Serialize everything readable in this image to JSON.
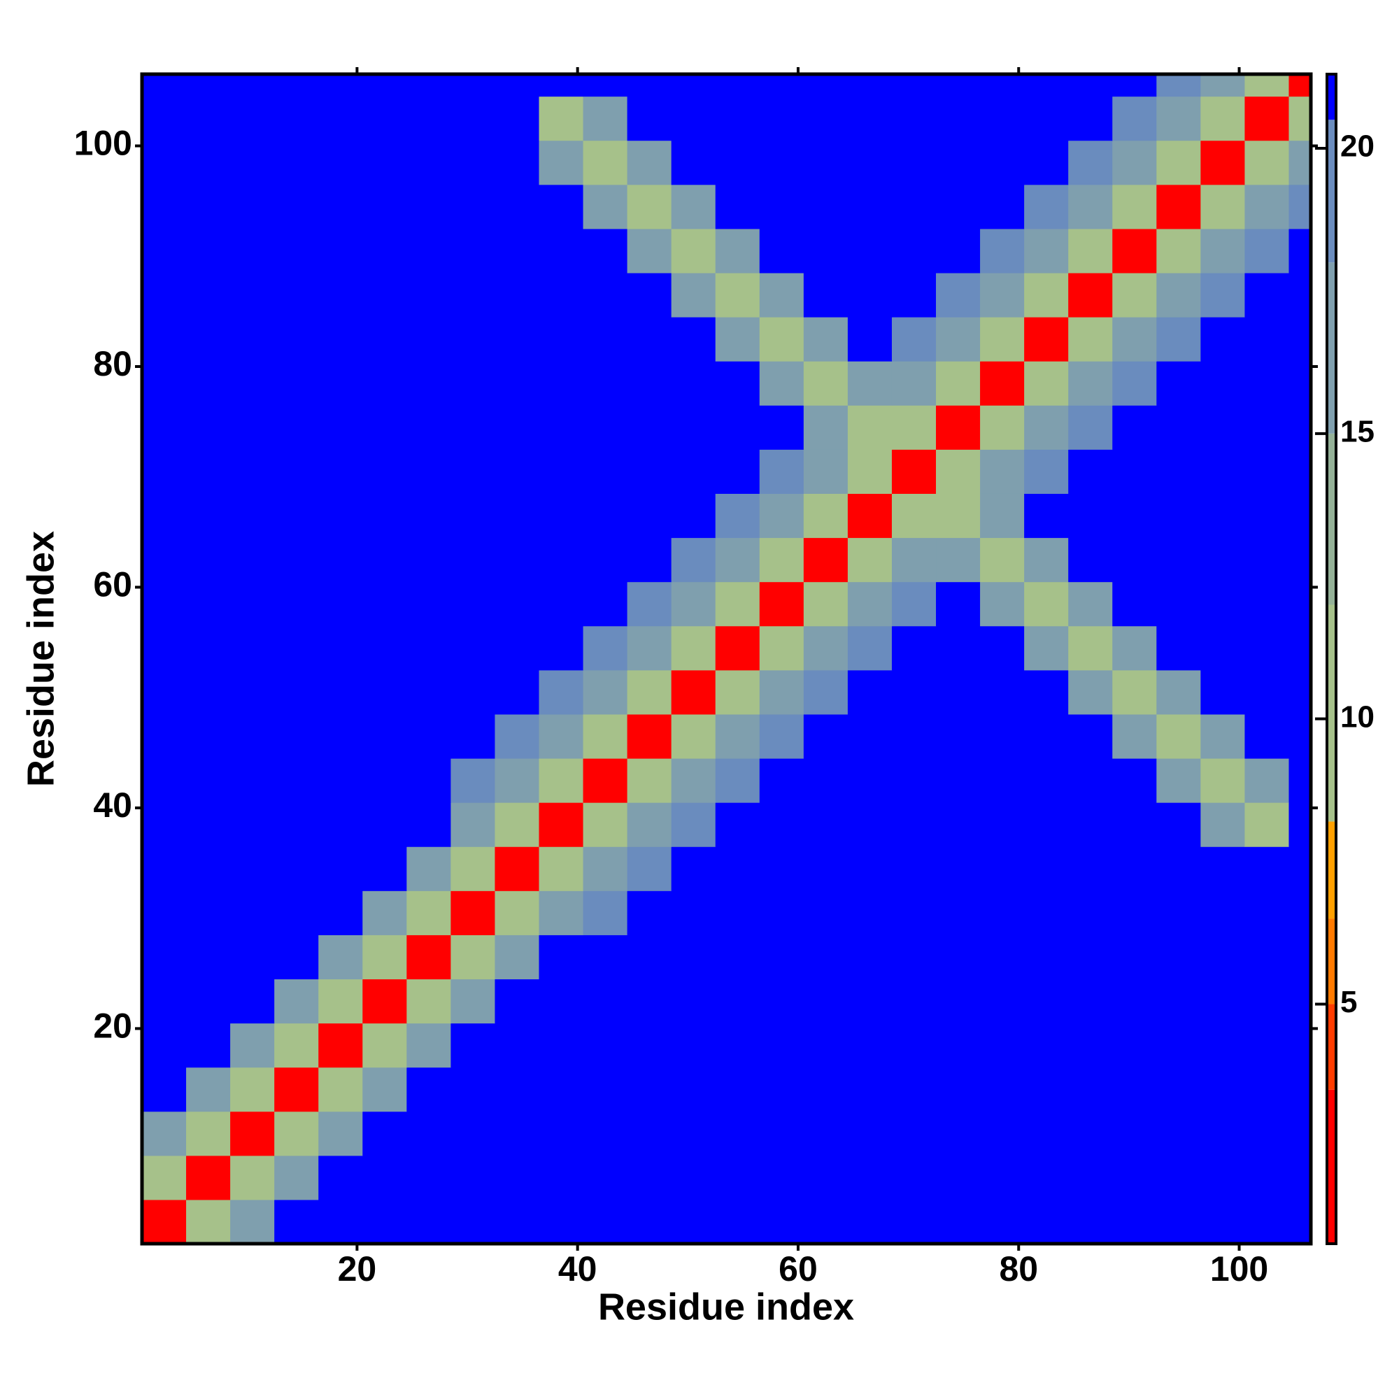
{
  "chart_data": {
    "type": "heatmap",
    "x_label": "Residue index",
    "y_label": "Residue index",
    "xlim": [
      0.5,
      106.5
    ],
    "ylim": [
      0.5,
      106.5
    ],
    "xticks": [
      20,
      40,
      60,
      80,
      100
    ],
    "yticks": [
      20,
      40,
      60,
      80,
      100
    ],
    "bins": [
      0.5,
      4.5,
      8.5,
      12.5,
      16.5,
      20.5,
      24.5,
      28.5,
      32.5,
      36.5,
      40.5,
      44.5,
      48.5,
      52.5,
      56.5,
      60.5,
      64.5,
      68.5,
      72.5,
      76.5,
      80.5,
      84.5,
      88.5,
      92.5,
      96.5,
      100.5,
      104.5,
      106.5
    ],
    "zlim": [
      0.8,
      21.3
    ],
    "zticks": [
      5,
      10,
      15,
      20
    ],
    "colorscale": [
      [
        0.8,
        "#ff0000"
      ],
      [
        3.5,
        "#ff3c00"
      ],
      [
        5,
        "#ff7a00"
      ],
      [
        6.5,
        "#ffa000"
      ],
      [
        8.2,
        "#a6c18a"
      ],
      [
        12,
        "#94b197"
      ],
      [
        15,
        "#7f9fae"
      ],
      [
        18,
        "#6a8cbe"
      ],
      [
        20.5,
        "#0000ff"
      ]
    ],
    "z": [
      [
        3,
        9,
        15,
        21,
        21,
        21,
        21,
        21,
        21,
        21,
        21,
        21,
        21,
        21,
        21,
        21,
        21,
        21,
        21,
        21,
        21,
        21,
        21,
        21,
        21,
        21,
        21
      ],
      [
        9,
        3,
        9,
        15,
        21,
        21,
        21,
        21,
        21,
        21,
        21,
        21,
        21,
        21,
        21,
        21,
        21,
        21,
        21,
        21,
        21,
        21,
        21,
        21,
        21,
        21,
        21
      ],
      [
        15,
        9,
        3,
        9,
        15,
        21,
        21,
        21,
        21,
        21,
        21,
        21,
        21,
        21,
        21,
        21,
        21,
        21,
        21,
        21,
        21,
        21,
        21,
        21,
        21,
        21,
        21
      ],
      [
        21,
        15,
        9,
        3,
        9,
        15,
        21,
        21,
        21,
        21,
        21,
        21,
        21,
        21,
        21,
        21,
        21,
        21,
        21,
        21,
        21,
        21,
        21,
        21,
        21,
        21,
        21
      ],
      [
        21,
        21,
        15,
        9,
        3,
        9,
        15,
        21,
        21,
        21,
        21,
        21,
        21,
        21,
        21,
        21,
        21,
        21,
        21,
        21,
        21,
        21,
        21,
        21,
        21,
        21,
        21
      ],
      [
        21,
        21,
        21,
        15,
        9,
        3,
        9,
        15,
        21,
        21,
        21,
        21,
        21,
        21,
        21,
        21,
        21,
        21,
        21,
        21,
        21,
        21,
        21,
        21,
        21,
        21,
        21
      ],
      [
        21,
        21,
        21,
        21,
        15,
        9,
        3,
        9,
        15,
        21,
        21,
        21,
        21,
        21,
        21,
        21,
        21,
        21,
        21,
        21,
        21,
        21,
        21,
        21,
        21,
        21,
        21
      ],
      [
        21,
        21,
        21,
        21,
        21,
        15,
        9,
        3,
        9,
        15,
        19,
        21,
        21,
        21,
        21,
        21,
        21,
        21,
        21,
        21,
        21,
        21,
        21,
        21,
        21,
        21,
        21
      ],
      [
        21,
        21,
        21,
        21,
        21,
        21,
        15,
        9,
        3,
        9,
        15,
        19,
        21,
        21,
        21,
        21,
        21,
        21,
        21,
        21,
        21,
        21,
        21,
        21,
        21,
        21,
        21
      ],
      [
        21,
        21,
        21,
        21,
        21,
        21,
        21,
        15,
        9,
        3,
        9,
        15,
        19,
        21,
        21,
        21,
        21,
        21,
        21,
        21,
        21,
        21,
        21,
        21,
        16,
        11,
        21
      ],
      [
        21,
        21,
        21,
        21,
        21,
        21,
        21,
        19,
        15,
        9,
        3,
        9,
        15,
        19,
        21,
        21,
        21,
        21,
        21,
        21,
        21,
        21,
        21,
        16,
        11,
        16,
        21
      ],
      [
        21,
        21,
        21,
        21,
        21,
        21,
        21,
        21,
        19,
        15,
        9,
        3,
        9,
        15,
        19,
        21,
        21,
        21,
        21,
        21,
        21,
        21,
        16,
        11,
        16,
        21,
        21
      ],
      [
        21,
        21,
        21,
        21,
        21,
        21,
        21,
        21,
        21,
        19,
        15,
        9,
        3,
        9,
        15,
        19,
        21,
        21,
        21,
        21,
        21,
        16,
        11,
        16,
        21,
        21,
        21
      ],
      [
        21,
        21,
        21,
        21,
        21,
        21,
        21,
        21,
        21,
        21,
        19,
        15,
        9,
        3,
        9,
        15,
        19,
        21,
        21,
        21,
        16,
        11,
        16,
        21,
        21,
        21,
        21
      ],
      [
        21,
        21,
        21,
        21,
        21,
        21,
        21,
        21,
        21,
        21,
        21,
        19,
        15,
        9,
        3,
        9,
        15,
        19,
        21,
        16,
        11,
        16,
        21,
        21,
        21,
        21,
        21
      ],
      [
        21,
        21,
        21,
        21,
        21,
        21,
        21,
        21,
        21,
        21,
        21,
        21,
        19,
        15,
        9,
        3,
        9,
        15,
        16,
        11,
        16,
        21,
        21,
        21,
        21,
        21,
        21
      ],
      [
        21,
        21,
        21,
        21,
        21,
        21,
        21,
        21,
        21,
        21,
        21,
        21,
        21,
        19,
        15,
        9,
        3,
        9,
        11,
        16,
        21,
        21,
        21,
        21,
        21,
        21,
        21
      ],
      [
        21,
        21,
        21,
        21,
        21,
        21,
        21,
        21,
        21,
        21,
        21,
        21,
        21,
        21,
        19,
        15,
        9,
        3,
        9,
        15,
        19,
        21,
        21,
        21,
        21,
        21,
        21
      ],
      [
        21,
        21,
        21,
        21,
        21,
        21,
        21,
        21,
        21,
        21,
        21,
        21,
        21,
        21,
        21,
        16,
        11,
        9,
        3,
        9,
        15,
        19,
        21,
        21,
        21,
        21,
        21
      ],
      [
        21,
        21,
        21,
        21,
        21,
        21,
        21,
        21,
        21,
        21,
        21,
        21,
        21,
        21,
        16,
        11,
        16,
        15,
        9,
        3,
        9,
        15,
        19,
        21,
        21,
        21,
        21
      ],
      [
        21,
        21,
        21,
        21,
        21,
        21,
        21,
        21,
        21,
        21,
        21,
        21,
        21,
        16,
        11,
        16,
        21,
        19,
        15,
        9,
        3,
        9,
        15,
        19,
        21,
        21,
        21
      ],
      [
        21,
        21,
        21,
        21,
        21,
        21,
        21,
        21,
        21,
        21,
        21,
        21,
        16,
        11,
        16,
        21,
        21,
        21,
        19,
        15,
        9,
        3,
        9,
        15,
        19,
        21,
        21
      ],
      [
        21,
        21,
        21,
        21,
        21,
        21,
        21,
        21,
        21,
        21,
        21,
        16,
        11,
        16,
        21,
        21,
        21,
        21,
        21,
        19,
        15,
        9,
        3,
        9,
        15,
        19,
        21
      ],
      [
        21,
        21,
        21,
        21,
        21,
        21,
        21,
        21,
        21,
        21,
        16,
        11,
        16,
        21,
        21,
        21,
        21,
        21,
        21,
        21,
        19,
        15,
        9,
        3,
        9,
        15,
        19
      ],
      [
        21,
        21,
        21,
        21,
        21,
        21,
        21,
        21,
        21,
        16,
        11,
        16,
        21,
        21,
        21,
        21,
        21,
        21,
        21,
        21,
        21,
        19,
        15,
        9,
        3,
        9,
        15
      ],
      [
        21,
        21,
        21,
        21,
        21,
        21,
        21,
        21,
        21,
        11,
        16,
        21,
        21,
        21,
        21,
        21,
        21,
        21,
        21,
        21,
        21,
        21,
        19,
        15,
        9,
        3,
        9
      ],
      [
        21,
        21,
        21,
        21,
        21,
        21,
        21,
        21,
        21,
        21,
        21,
        21,
        21,
        21,
        21,
        21,
        21,
        21,
        21,
        21,
        21,
        21,
        21,
        19,
        15,
        9,
        3
      ]
    ]
  }
}
